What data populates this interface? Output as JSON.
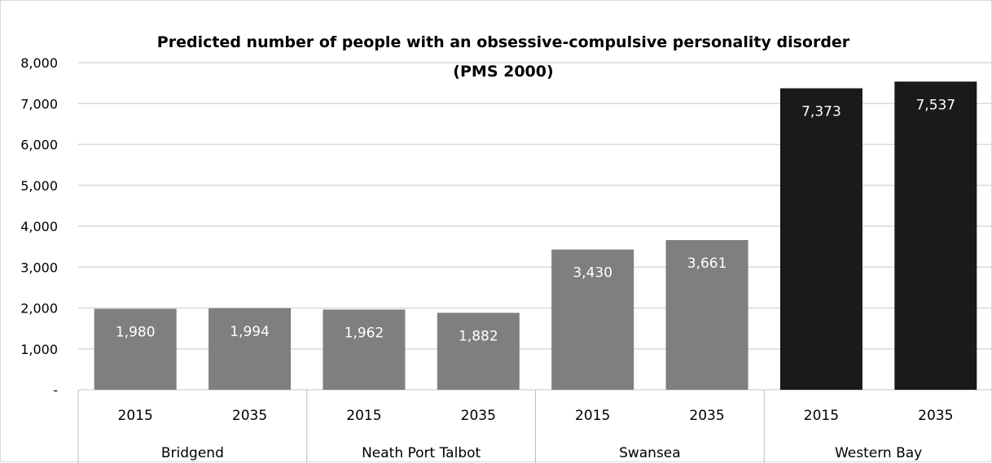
{
  "chart_data": {
    "type": "bar",
    "title_line1": "Predicted number of people with an obsessive-compulsive personality disorder",
    "title_line2": "(PMS 2000)",
    "xlabel": "",
    "ylabel": "",
    "ylim": [
      0,
      8000
    ],
    "yticks": [
      {
        "value": 0,
        "label": "-"
      },
      {
        "value": 1000,
        "label": "1,000"
      },
      {
        "value": 2000,
        "label": "2,000"
      },
      {
        "value": 3000,
        "label": "3,000"
      },
      {
        "value": 4000,
        "label": "4,000"
      },
      {
        "value": 5000,
        "label": "5,000"
      },
      {
        "value": 6000,
        "label": "6,000"
      },
      {
        "value": 7000,
        "label": "7,000"
      },
      {
        "value": 8000,
        "label": "8,000"
      }
    ],
    "grid": true,
    "legend": "none",
    "groups": [
      {
        "name": "Bridgend",
        "color": "#7f7f7f",
        "bars": [
          {
            "year": "2015",
            "value": 1980,
            "label": "1,980"
          },
          {
            "year": "2035",
            "value": 1994,
            "label": "1,994"
          }
        ]
      },
      {
        "name": "Neath Port Talbot",
        "color": "#7f7f7f",
        "bars": [
          {
            "year": "2015",
            "value": 1962,
            "label": "1,962"
          },
          {
            "year": "2035",
            "value": 1882,
            "label": "1,882"
          }
        ]
      },
      {
        "name": "Swansea",
        "color": "#7f7f7f",
        "bars": [
          {
            "year": "2015",
            "value": 3430,
            "label": "3,430"
          },
          {
            "year": "2035",
            "value": 3661,
            "label": "3,661"
          }
        ]
      },
      {
        "name": "Western Bay",
        "color": "#1a1a1a",
        "bars": [
          {
            "year": "2015",
            "value": 7373,
            "label": "7,373"
          },
          {
            "year": "2035",
            "value": 7537,
            "label": "7,537"
          }
        ]
      }
    ]
  }
}
